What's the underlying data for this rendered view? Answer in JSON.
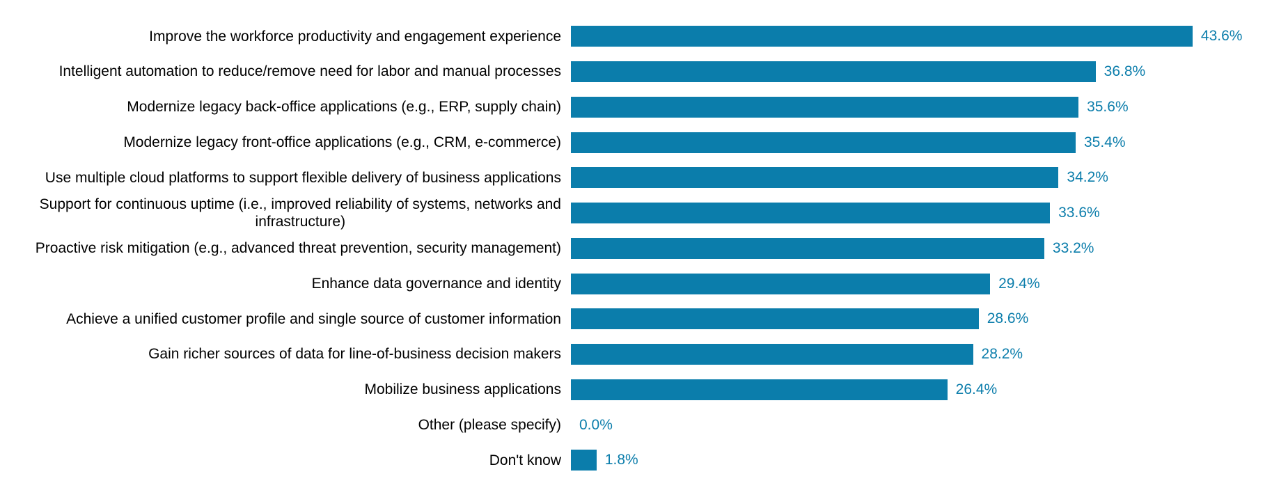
{
  "chart_data": {
    "type": "bar",
    "orientation": "horizontal",
    "unit": "percent",
    "title": "",
    "xlabel": "",
    "ylabel": "",
    "xlim": [
      0,
      50.3
    ],
    "grid": false,
    "legend": false,
    "bar_color": "#0b7dab",
    "value_label_color": "#0b7dab",
    "category_label_color": "#000000",
    "background_color": "#ffffff",
    "categories": [
      "Improve the workforce productivity and engagement experience",
      "Intelligent automation to reduce/remove need for labor and manual processes",
      "Modernize legacy back-office applications (e.g., ERP, supply chain)",
      "Modernize legacy front-office applications (e.g., CRM, e-commerce)",
      "Use multiple cloud platforms to support flexible delivery of business applications",
      "Support for continuous uptime (i.e., improved reliability of systems, networks and\ninfrastructure)",
      "Proactive risk mitigation (e.g., advanced threat prevention, security management)",
      "Enhance data governance and identity",
      "Achieve a unified customer profile and single source of customer information",
      "Gain richer sources of data for line-of-business decision makers",
      "Mobilize business applications",
      "Other (please specify)",
      "Don't know"
    ],
    "values": [
      43.6,
      36.8,
      35.6,
      35.4,
      34.2,
      33.6,
      33.2,
      29.4,
      28.6,
      28.2,
      26.4,
      0.0,
      1.8
    ],
    "value_labels": [
      "43.6%",
      "36.8%",
      "35.6%",
      "35.4%",
      "34.2%",
      "33.6%",
      "33.2%",
      "29.4%",
      "28.6%",
      "28.2%",
      "26.4%",
      "0.0%",
      "1.8%"
    ]
  }
}
